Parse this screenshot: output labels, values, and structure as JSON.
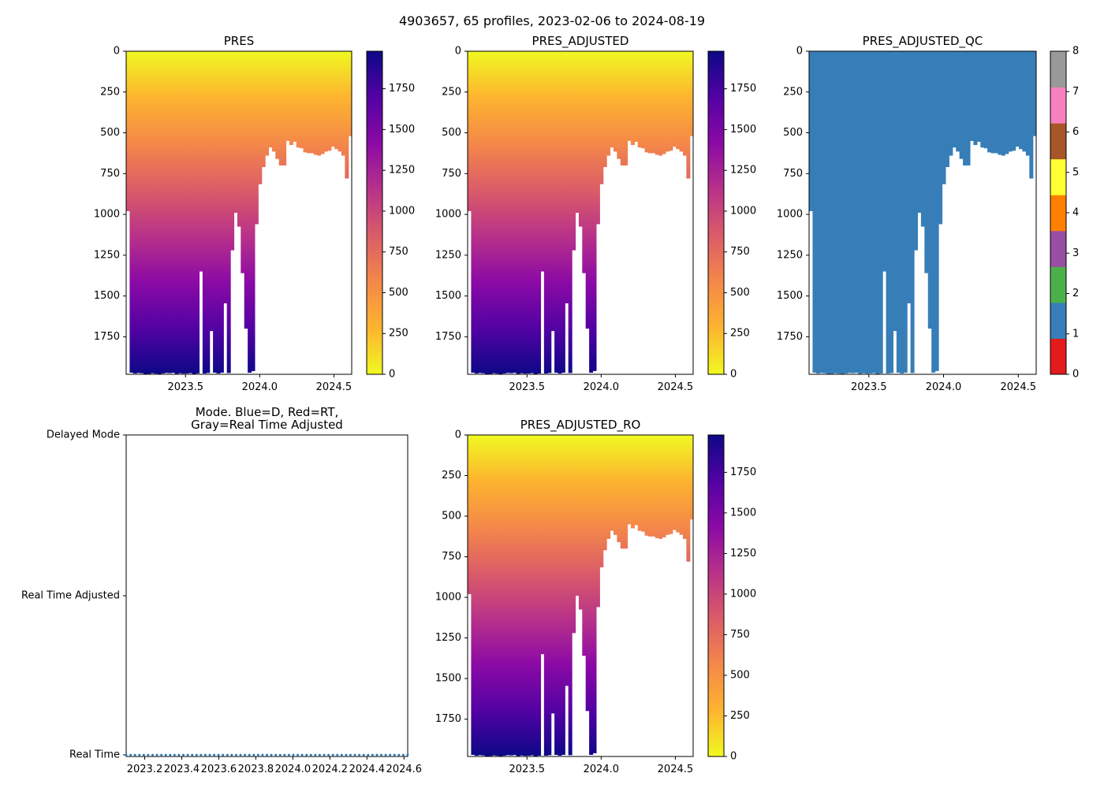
{
  "figure": {
    "title": "4903657, 65 profiles, 2023-02-06 to 2024-08-19",
    "colors": {
      "cmap_plasma_r": [
        "#f0f921",
        "#fdb42f",
        "#f48849",
        "#db5c68",
        "#b83289",
        "#8b0aa5",
        "#5302a3",
        "#0d0887"
      ],
      "qc_colors": [
        "#e41a1c",
        "#377eb8",
        "#4daf4a",
        "#984ea3",
        "#ff7f00",
        "#ffff33",
        "#a65628",
        "#f781bf",
        "#999999"
      ],
      "mode_dots": "#1f77b4"
    }
  },
  "profiles": {
    "x_start": 2023.1,
    "x_step": 0.0234,
    "depth_max": 1980,
    "bottom_pressures": [
      980,
      1970,
      1975,
      1972,
      1974,
      1978,
      1977,
      1974,
      1976,
      1978,
      1975,
      1972,
      1973,
      1971,
      1977,
      1974,
      1976,
      1975,
      1973,
      1978,
      1975,
      1350,
      1975,
      1972,
      1715,
      1970,
      1975,
      1970,
      1545,
      1972,
      1220,
      990,
      1075,
      1360,
      1700,
      1970,
      1960,
      1060,
      815,
      710,
      640,
      590,
      615,
      660,
      700,
      700,
      550,
      575,
      555,
      590,
      595,
      620,
      625,
      625,
      635,
      640,
      630,
      615,
      610,
      585,
      600,
      615,
      640,
      780,
      520
    ]
  },
  "chart_data": [
    {
      "type": "heatmap",
      "title": "PRES",
      "xlabel": "",
      "ylabel": "",
      "xlim": [
        2023.1,
        2024.62
      ],
      "ylim": [
        1980,
        0
      ],
      "xticks": [
        "2023.5",
        "2024.0",
        "2024.5"
      ],
      "yticks": [
        "0",
        "250",
        "500",
        "750",
        "1000",
        "1250",
        "1500",
        "1750"
      ],
      "colorbar": {
        "range": [
          0,
          1980
        ],
        "ticks": [
          "0",
          "250",
          "500",
          "750",
          "1000",
          "1250",
          "1500",
          "1750"
        ]
      },
      "qc_mode": false
    },
    {
      "type": "heatmap",
      "title": "PRES_ADJUSTED",
      "xlabel": "",
      "ylabel": "",
      "xlim": [
        2023.1,
        2024.62
      ],
      "ylim": [
        1980,
        0
      ],
      "xticks": [
        "2023.5",
        "2024.0",
        "2024.5"
      ],
      "yticks": [
        "0",
        "250",
        "500",
        "750",
        "1000",
        "1250",
        "1500",
        "1750"
      ],
      "colorbar": {
        "range": [
          0,
          1980
        ],
        "ticks": [
          "0",
          "250",
          "500",
          "750",
          "1000",
          "1250",
          "1500",
          "1750"
        ]
      },
      "qc_mode": false
    },
    {
      "type": "heatmap",
      "title": "PRES_ADJUSTED_QC",
      "xlabel": "",
      "ylabel": "",
      "xlim": [
        2023.1,
        2024.62
      ],
      "ylim": [
        1980,
        0
      ],
      "xticks": [
        "2023.5",
        "2024.0",
        "2024.5"
      ],
      "yticks": [
        "0",
        "250",
        "500",
        "750",
        "1000",
        "1250",
        "1500",
        "1750"
      ],
      "colorbar": {
        "range": [
          0,
          8
        ],
        "ticks": [
          "0",
          "1",
          "2",
          "3",
          "4",
          "5",
          "6",
          "7",
          "8"
        ]
      },
      "qc_mode": true,
      "qc_value": 1
    },
    {
      "type": "scatter",
      "title": "Mode. Blue=D, Red=RT,\nGray=Real Time Adjusted",
      "xlabel": "",
      "ylabel": "",
      "xlim": [
        2023.1,
        2024.62
      ],
      "xticks": [
        "2023.2",
        "2023.4",
        "2023.6",
        "2023.8",
        "2024.0",
        "2024.2",
        "2024.4",
        "2024.6"
      ],
      "ycategories": [
        "Real Time",
        "Real Time Adjusted",
        "Delayed Mode"
      ],
      "points_mode": "Real Time",
      "point_count": 65
    },
    {
      "type": "heatmap",
      "title": "PRES_ADJUSTED_RO",
      "xlabel": "",
      "ylabel": "",
      "xlim": [
        2023.1,
        2024.62
      ],
      "ylim": [
        1980,
        0
      ],
      "xticks": [
        "2023.5",
        "2024.0",
        "2024.5"
      ],
      "yticks": [
        "0",
        "250",
        "500",
        "750",
        "1000",
        "1250",
        "1500",
        "1750"
      ],
      "colorbar": {
        "range": [
          0,
          1980
        ],
        "ticks": [
          "0",
          "250",
          "500",
          "750",
          "1000",
          "1250",
          "1500",
          "1750"
        ]
      },
      "qc_mode": false
    }
  ]
}
